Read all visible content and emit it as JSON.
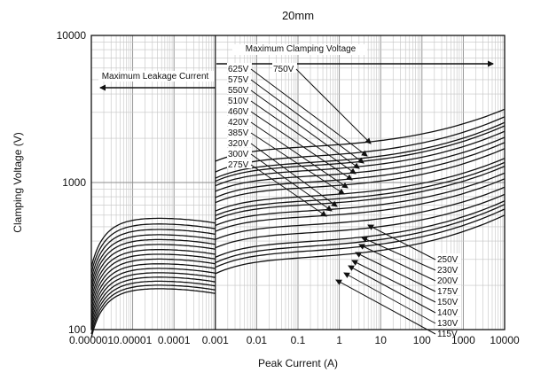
{
  "chart_data": {
    "type": "line",
    "title": "20mm",
    "xlabel": "Peak Current (A)",
    "ylabel": "Clamping Voltage (V)",
    "x_scale": "log",
    "y_scale": "log",
    "xlim": [
      1e-06,
      10000
    ],
    "ylim": [
      100,
      10000
    ],
    "x_ticks": [
      "0.000001",
      "0.00001",
      "0.0001",
      "0.001",
      "0.01",
      "0.1",
      "1",
      "10",
      "100",
      "1000",
      "10000"
    ],
    "y_ticks": [
      "100",
      "1000",
      "10000"
    ],
    "grid": true,
    "split_x": 0.001,
    "left_region_label": "Maximum Leakage Current",
    "right_region_label": "Maximum Clamping Voltage",
    "leakage_current_curves_V": [
      530,
      485,
      445,
      410,
      380,
      352,
      325,
      302,
      280,
      260,
      242,
      226,
      211,
      198,
      186,
      176
    ],
    "clamping_voltage_curves": {
      "ratings": [
        "750V",
        "625V",
        "575V",
        "550V",
        "510V",
        "460V",
        "420V",
        "385V",
        "320V",
        "300V",
        "275V",
        "250V",
        "230V",
        "200V",
        "175V",
        "150V",
        "140V",
        "130V",
        "115V"
      ],
      "voltage_at_0_001A": [
        1395,
        1180,
        1070,
        1020,
        950,
        870,
        790,
        730,
        640,
        595,
        560,
        510,
        465,
        410,
        360,
        310,
        285,
        265,
        240
      ],
      "voltage_at_10000A": [
        3150,
        2800,
        2560,
        2430,
        2230,
        2030,
        1870,
        1700,
        1460,
        1370,
        1290,
        1160,
        1060,
        930,
        830,
        750,
        710,
        660,
        600
      ]
    },
    "labels_top": [
      "750V",
      "625V",
      "575V",
      "550V",
      "510V",
      "460V",
      "420V",
      "385V",
      "320V",
      "300V",
      "275V"
    ],
    "labels_bottom": [
      "250V",
      "230V",
      "200V",
      "175V",
      "150V",
      "140V",
      "130V",
      "115V"
    ]
  }
}
